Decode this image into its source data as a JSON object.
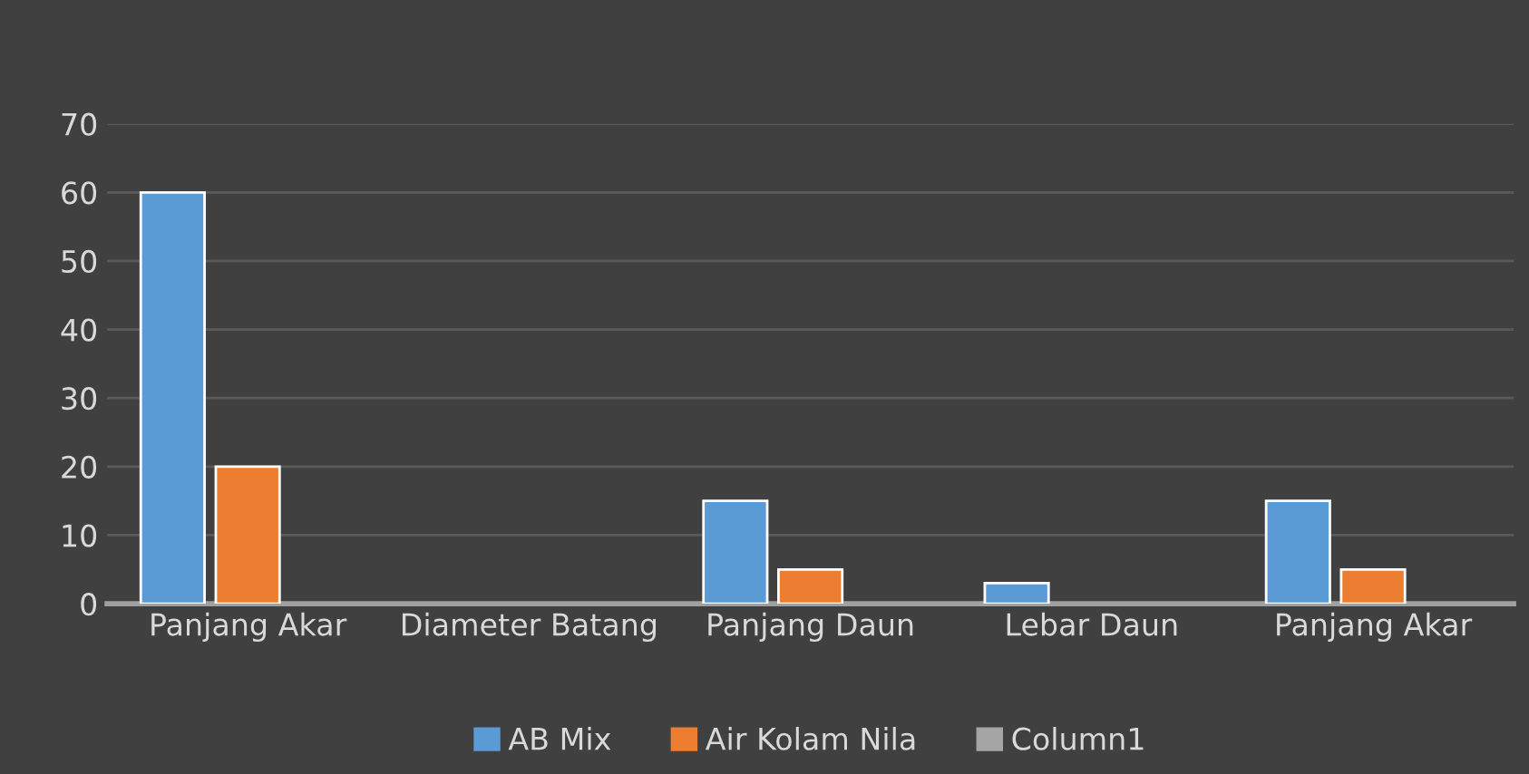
{
  "chart_data": {
    "type": "bar",
    "categories": [
      "Panjang Akar",
      "Diameter Batang",
      "Panjang Daun",
      "Lebar Daun",
      "Panjang Akar"
    ],
    "series": [
      {
        "name": "AB Mix",
        "color": "#5b9bd5",
        "values": [
          60,
          null,
          15,
          3,
          15
        ]
      },
      {
        "name": "Air Kolam Nila",
        "color": "#ed7d31",
        "values": [
          20,
          null,
          5,
          null,
          5
        ]
      },
      {
        "name": "Column1",
        "color": "#a5a5a5",
        "values": [
          null,
          null,
          null,
          null,
          null
        ]
      }
    ],
    "ylim": [
      0,
      70
    ],
    "yticks": [
      0,
      10,
      20,
      30,
      40,
      50,
      60,
      70
    ],
    "grid": "y",
    "legend": "bottom"
  }
}
